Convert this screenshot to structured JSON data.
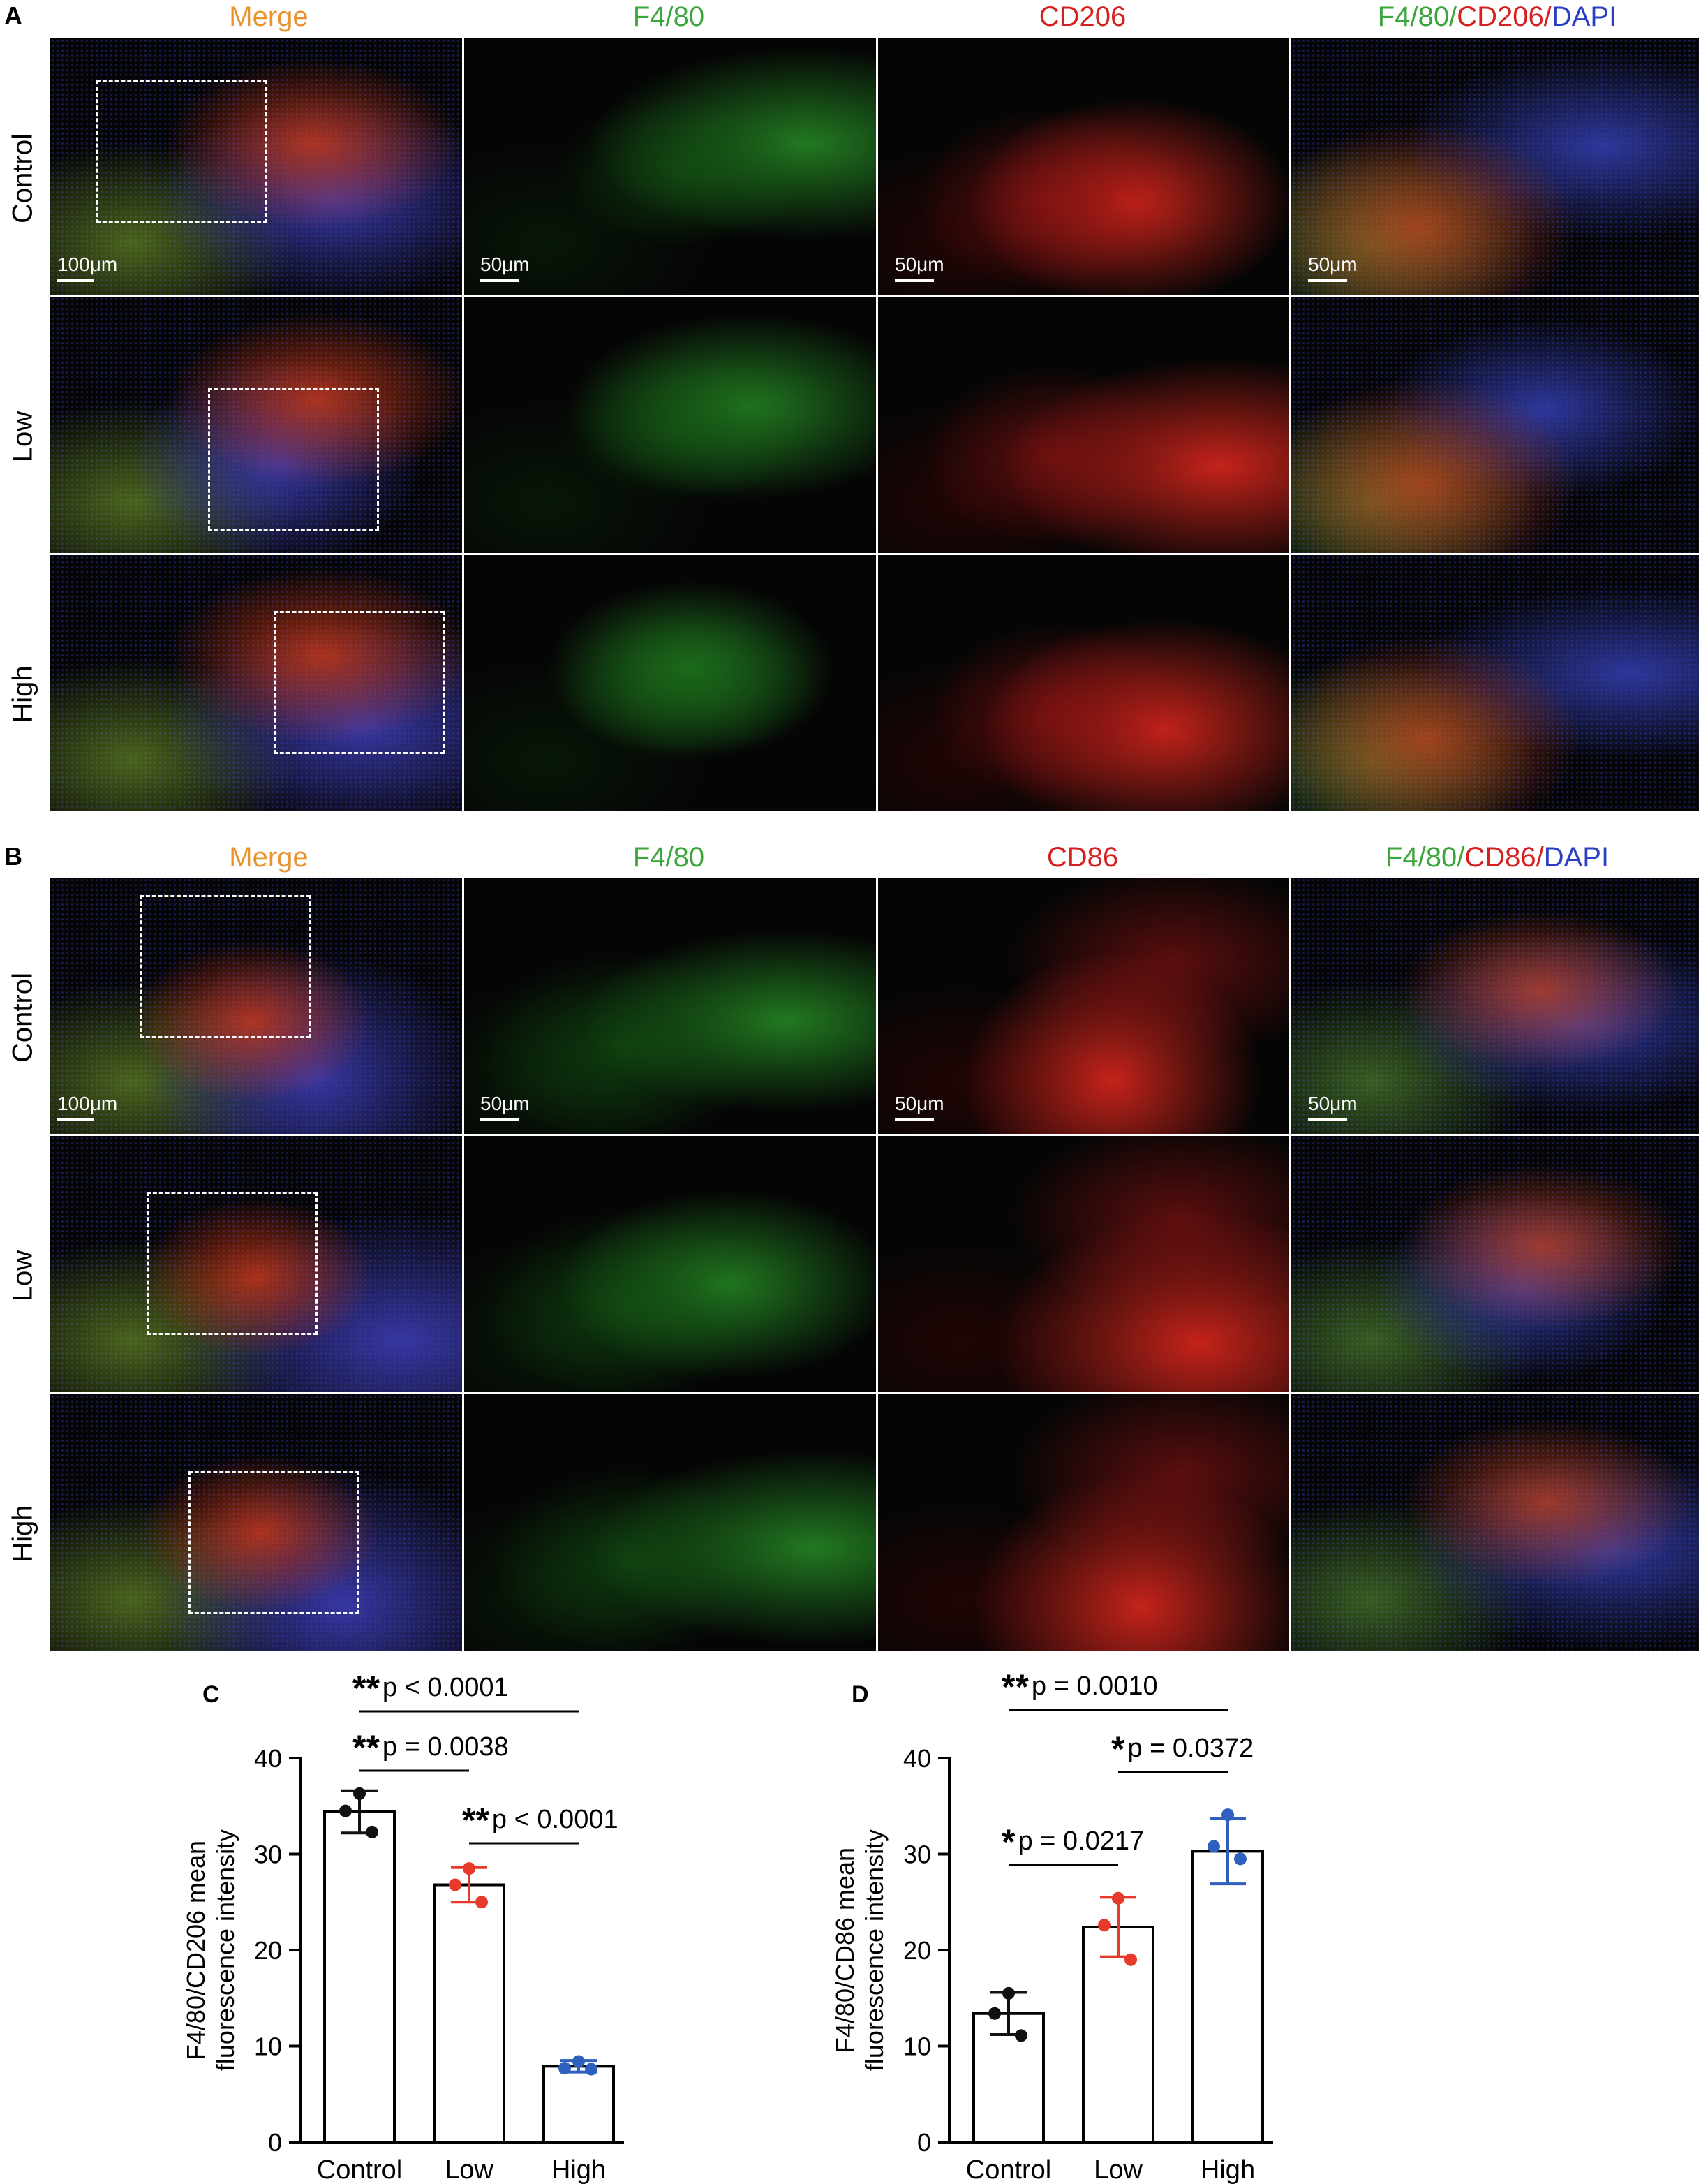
{
  "panel_a": {
    "letter": "A",
    "columns": [
      "Merge",
      "F4/80",
      "CD206",
      "F4/80/CD206/DAPI"
    ],
    "col_colors": [
      "#e8932c",
      "#3aa53a",
      "#d62020",
      "mixed"
    ],
    "last_col_parts": [
      {
        "t": "F4/80",
        "c": "#3aa53a"
      },
      {
        "t": "/",
        "c": "#3aa53a"
      },
      {
        "t": "CD206",
        "c": "#d62020"
      },
      {
        "t": "/",
        "c": "#d62020"
      },
      {
        "t": "DAPI",
        "c": "#2b3fc4"
      }
    ],
    "rows": [
      "Control",
      "Low",
      "High"
    ],
    "scale_merge": "100μm",
    "scale_zoom": "50μm"
  },
  "panel_b": {
    "letter": "B",
    "columns": [
      "Merge",
      "F4/80",
      "CD86",
      "F4/80/CD86/DAPI"
    ],
    "last_col_parts": [
      {
        "t": "F4/80",
        "c": "#3aa53a"
      },
      {
        "t": "/",
        "c": "#3aa53a"
      },
      {
        "t": "CD86",
        "c": "#d62020"
      },
      {
        "t": "/",
        "c": "#d62020"
      },
      {
        "t": "DAPI",
        "c": "#2b3fc4"
      }
    ],
    "rows": [
      "Control",
      "Low",
      "High"
    ],
    "scale_merge": "100μm",
    "scale_zoom": "50μm"
  },
  "colors": {
    "control": "#111111",
    "low": "#e83a2a",
    "high": "#2f5fbf"
  },
  "chart_data": [
    {
      "panel": "C",
      "type": "bar",
      "categories": [
        "Control",
        "Low",
        "High"
      ],
      "values": [
        34.4,
        26.8,
        7.9
      ],
      "errors": [
        2.2,
        1.8,
        0.6
      ],
      "points": [
        [
          36.3,
          34.5,
          32.3
        ],
        [
          28.5,
          26.8,
          25.0
        ],
        [
          8.4,
          7.7,
          7.6
        ]
      ],
      "ylabel": "F4/80/CD206 mean fluorescence intensity",
      "ylabel_lines": [
        "F4/80/CD206 mean",
        "fluorescence intensity"
      ],
      "ylim": [
        0,
        40
      ],
      "yticks": [
        0,
        10,
        20,
        30,
        40
      ],
      "comparisons": [
        {
          "a": 0,
          "b": 2,
          "stars": "**",
          "text": "p < 0.0001"
        },
        {
          "a": 0,
          "b": 1,
          "stars": "**",
          "text": "p = 0.0038"
        },
        {
          "a": 1,
          "b": 2,
          "stars": "**",
          "text": "p < 0.0001"
        }
      ]
    },
    {
      "panel": "D",
      "type": "bar",
      "categories": [
        "Control",
        "Low",
        "High"
      ],
      "values": [
        13.4,
        22.4,
        30.3
      ],
      "errors": [
        2.2,
        3.1,
        3.4
      ],
      "points": [
        [
          15.5,
          13.4,
          11.1
        ],
        [
          25.4,
          22.6,
          19.0
        ],
        [
          34.1,
          30.8,
          29.5
        ]
      ],
      "ylabel": "F4/80/CD86 mean fluorescence intensity",
      "ylabel_lines": [
        "F4/80/CD86 mean",
        "fluorescence intensity"
      ],
      "ylim": [
        0,
        40
      ],
      "yticks": [
        0,
        10,
        20,
        30,
        40
      ],
      "comparisons": [
        {
          "a": 0,
          "b": 2,
          "stars": "**",
          "text": "p = 0.0010"
        },
        {
          "a": 1,
          "b": 2,
          "stars": "*",
          "text": "p = 0.0372"
        },
        {
          "a": 0,
          "b": 1,
          "stars": "*",
          "text": "p = 0.0217"
        }
      ]
    }
  ]
}
